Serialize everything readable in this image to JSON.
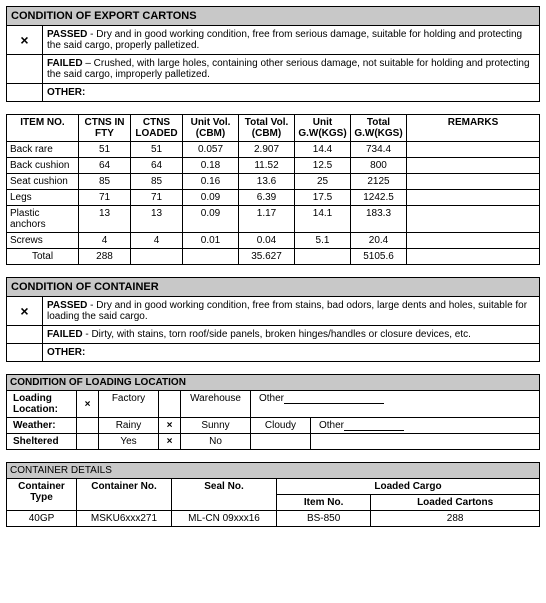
{
  "exportCartons": {
    "header": "CONDITION OF EXPORT CARTONS",
    "passedMark": "×",
    "passed": "PASSED - Dry and in good working condition, free from serious damage, suitable for holding and protecting the said cargo, properly palletized.",
    "failed": "FAILED – Crushed, with large holes, containing other serious damage, not suitable for holding and protecting the said cargo, improperly palletized.",
    "other": "OTHER:"
  },
  "items": {
    "headers": {
      "itemNo": "ITEM NO.",
      "ctnsFty": "CTNS IN FTY",
      "ctnsLoaded": "CTNS LOADED",
      "unitVol": "Unit Vol.(CBM)",
      "totalVol": "Total Vol.(CBM)",
      "unitGw": "Unit G.W(KGS)",
      "totalGw": "Total G.W(KGS)",
      "remarks": "REMARKS"
    },
    "rows": [
      {
        "n": "Back rare",
        "cf": "51",
        "cl": "51",
        "uv": "0.057",
        "tv": "2.907",
        "ug": "14.4",
        "tg": "734.4",
        "r": ""
      },
      {
        "n": "Back cushion",
        "cf": "64",
        "cl": "64",
        "uv": "0.18",
        "tv": "11.52",
        "ug": "12.5",
        "tg": "800",
        "r": ""
      },
      {
        "n": "Seat cushion",
        "cf": "85",
        "cl": "85",
        "uv": "0.16",
        "tv": "13.6",
        "ug": "25",
        "tg": "2125",
        "r": ""
      },
      {
        "n": "Legs",
        "cf": "71",
        "cl": "71",
        "uv": "0.09",
        "tv": "6.39",
        "ug": "17.5",
        "tg": "1242.5",
        "r": ""
      },
      {
        "n": "Plastic anchors",
        "cf": "13",
        "cl": "13",
        "uv": "0.09",
        "tv": "1.17",
        "ug": "14.1",
        "tg": "183.3",
        "r": ""
      },
      {
        "n": "Screws",
        "cf": "4",
        "cl": "4",
        "uv": "0.01",
        "tv": "0.04",
        "ug": "5.1",
        "tg": "20.4",
        "r": ""
      }
    ],
    "total": {
      "label": "Total",
      "cf": "288",
      "tv": "35.627",
      "tg": "5105.6"
    }
  },
  "container": {
    "header": "CONDITION OF CONTAINER",
    "passedMark": "×",
    "passed": "PASSED - Dry and in good working condition, free from stains, bad odors, large dents and holes, suitable for loading the said cargo.",
    "failed": "FAILED - Dirty, with stains, torn roof/side panels, broken hinges/handles or closure devices, etc.",
    "other": "OTHER:"
  },
  "location": {
    "header": "CONDITION OF LOADING LOCATION",
    "loadingLabel": "Loading Location:",
    "loadingMark": "×",
    "factory": "Factory",
    "warehouse": "Warehouse",
    "otherLabel": "Other",
    "weatherLabel": "Weather:",
    "rainy": "Rainy",
    "sunnyMark": "×",
    "sunny": "Sunny",
    "cloudy": "Cloudy",
    "shelteredLabel": "Sheltered",
    "yes": "Yes",
    "noMark": "×",
    "no": "No"
  },
  "details": {
    "header": "CONTAINER DETAILS",
    "containerType": "Container Type",
    "containerNo": "Container No.",
    "sealNo": "Seal No.",
    "loadedCargo": "Loaded Cargo",
    "itemNo": "Item No.",
    "loadedCartons": "Loaded Cartons",
    "row": {
      "type": "40GP",
      "cno": "MSKU6xxx271",
      "seal": "ML-CN 09xxx16",
      "item": "BS-850",
      "cart": "288"
    }
  }
}
